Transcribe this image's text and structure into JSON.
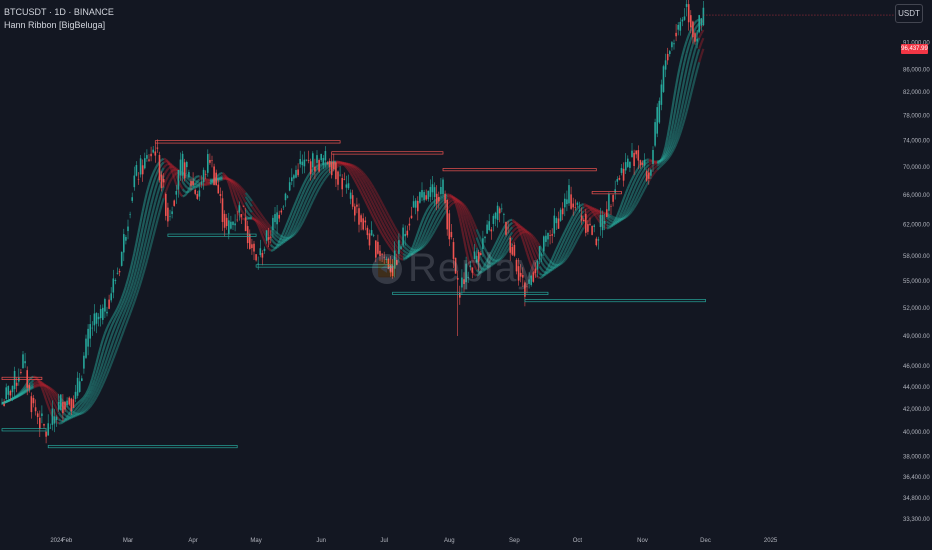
{
  "header": {
    "symbol_line": "BTCUSDT · 1D · BINANCE",
    "indicator_line": "Hann Ribbon [BigBeluga]"
  },
  "toolbar": {
    "currency_label": "USDT"
  },
  "watermark": {
    "icon": "rewind-icon",
    "text": "Replay"
  },
  "last_price": "96,437.99",
  "colors": {
    "background": "#131722",
    "bull": "#26a69a",
    "bear": "#ef5350",
    "ribbon_up": "#2bb5a6",
    "ribbon_down": "#b5222f",
    "price_tag": "#f23645"
  },
  "chart_data": {
    "type": "candlestick",
    "ylim": [
      33300,
      98500
    ],
    "y_scale": "log",
    "y_ticks": [
      "33,300.00",
      "34,800.00",
      "36,400.00",
      "38,000.00",
      "40,000.00",
      "42,000.00",
      "44,000.00",
      "46,000.00",
      "49,000.00",
      "52,000.00",
      "55,000.00",
      "58,000.00",
      "62,000.00",
      "66,000.00",
      "70,000.00",
      "74,000.00",
      "78,000.00",
      "82,000.00",
      "86,000.00",
      "91,000.00"
    ],
    "x_ticks": [
      "2024",
      "Feb",
      "Mar",
      "Apr",
      "May",
      "Jun",
      "Jul",
      "Aug",
      "Sep",
      "Oct",
      "Nov",
      "Dec",
      "2025"
    ],
    "close_path": [
      [
        "2024-01-01",
        42500
      ],
      [
        "2024-01-08",
        44800
      ],
      [
        "2024-01-11",
        46500
      ],
      [
        "2024-01-15",
        42600
      ],
      [
        "2024-01-22",
        39900
      ],
      [
        "2024-01-29",
        42600
      ],
      [
        "2024-02-05",
        43000
      ],
      [
        "2024-02-12",
        49800
      ],
      [
        "2024-02-19",
        51700
      ],
      [
        "2024-02-26",
        57000
      ],
      [
        "2024-03-04",
        68300
      ],
      [
        "2024-03-11",
        71500
      ],
      [
        "2024-03-14",
        73000
      ],
      [
        "2024-03-20",
        63000
      ],
      [
        "2024-03-27",
        70500
      ],
      [
        "2024-04-03",
        66000
      ],
      [
        "2024-04-09",
        71600
      ],
      [
        "2024-04-17",
        61200
      ],
      [
        "2024-04-24",
        64300
      ],
      [
        "2024-05-01",
        57000
      ],
      [
        "2024-05-08",
        61200
      ],
      [
        "2024-05-15",
        66200
      ],
      [
        "2024-05-21",
        70100
      ],
      [
        "2024-06-05",
        71100
      ],
      [
        "2024-06-12",
        67300
      ],
      [
        "2024-06-24",
        60300
      ],
      [
        "2024-07-05",
        56500
      ],
      [
        "2024-07-15",
        64700
      ],
      [
        "2024-07-29",
        66800
      ],
      [
        "2024-08-05",
        54000
      ],
      [
        "2024-08-15",
        58600
      ],
      [
        "2024-08-25",
        64200
      ],
      [
        "2024-09-06",
        53900
      ],
      [
        "2024-09-15",
        59200
      ],
      [
        "2024-09-27",
        65800
      ],
      [
        "2024-10-10",
        60300
      ],
      [
        "2024-10-20",
        68400
      ],
      [
        "2024-10-29",
        72300
      ],
      [
        "2024-11-04",
        68300
      ],
      [
        "2024-11-12",
        88000
      ],
      [
        "2024-11-22",
        98300
      ],
      [
        "2024-11-26",
        91900
      ],
      [
        "2024-11-30",
        96437.99
      ]
    ],
    "ribbon": {
      "legend": "Hann Ribbon [BigBeluga]",
      "bands": 6
    },
    "levels_resistance": [
      {
        "from": "2024-01-01",
        "to": "2024-01-20",
        "price": 44800
      },
      {
        "from": "2024-03-14",
        "to": "2024-06-10",
        "price": 73800
      },
      {
        "from": "2024-06-06",
        "to": "2024-07-29",
        "price": 72100
      },
      {
        "from": "2024-07-29",
        "to": "2024-10-10",
        "price": 69600
      },
      {
        "from": "2024-10-08",
        "to": "2024-10-22",
        "price": 66300
      }
    ],
    "levels_support": [
      {
        "from": "2024-01-01",
        "to": "2024-01-22",
        "price": 40200
      },
      {
        "from": "2024-01-23",
        "to": "2024-04-22",
        "price": 38800
      },
      {
        "from": "2024-03-20",
        "to": "2024-05-01",
        "price": 60600
      },
      {
        "from": "2024-05-01",
        "to": "2024-07-05",
        "price": 56800
      },
      {
        "from": "2024-07-05",
        "to": "2024-09-17",
        "price": 53600
      },
      {
        "from": "2024-09-06",
        "to": "2024-12-01",
        "price": 52800
      }
    ]
  }
}
